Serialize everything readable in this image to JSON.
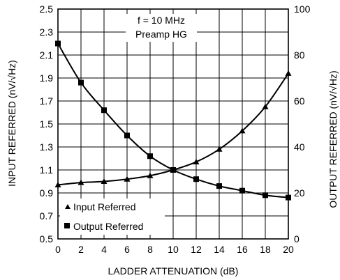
{
  "chart_data": {
    "type": "line",
    "xlabel": "LADDER ATTENUATION (dB)",
    "ylabel_left": "INPUT REFERRED (nV/√Hz)",
    "ylabel_right": "OUTPUT REFERRED (nV/√Hz)",
    "annotation": [
      "f = 10 MHz",
      "Preamp HG"
    ],
    "xlim": [
      0,
      20
    ],
    "ylim_left": [
      0.5,
      2.5
    ],
    "ylim_right": [
      0,
      100
    ],
    "xticks": [
      0,
      2,
      4,
      6,
      8,
      10,
      12,
      14,
      16,
      18,
      20
    ],
    "yticks_left": [
      "0.5",
      "0.7",
      "0.9",
      "1.1",
      "1.3",
      "1.5",
      "1.7",
      "1.9",
      "2.1",
      "2.3",
      "2.5"
    ],
    "yticks_right": [
      0,
      20,
      40,
      60,
      80,
      100
    ],
    "grid": true,
    "legend_position": "bottom-left",
    "x": [
      0,
      2,
      4,
      6,
      8,
      10,
      12,
      14,
      16,
      18,
      20
    ],
    "series": [
      {
        "name": "Input Referred",
        "marker": "triangle",
        "axis": "left",
        "values": [
          0.97,
          0.99,
          1.0,
          1.02,
          1.05,
          1.1,
          1.17,
          1.28,
          1.44,
          1.65,
          1.94
        ]
      },
      {
        "name": "Output Referred",
        "marker": "square",
        "axis": "right",
        "values": [
          85,
          68,
          56,
          45,
          36,
          30,
          26,
          23,
          21,
          19,
          18
        ]
      }
    ]
  }
}
